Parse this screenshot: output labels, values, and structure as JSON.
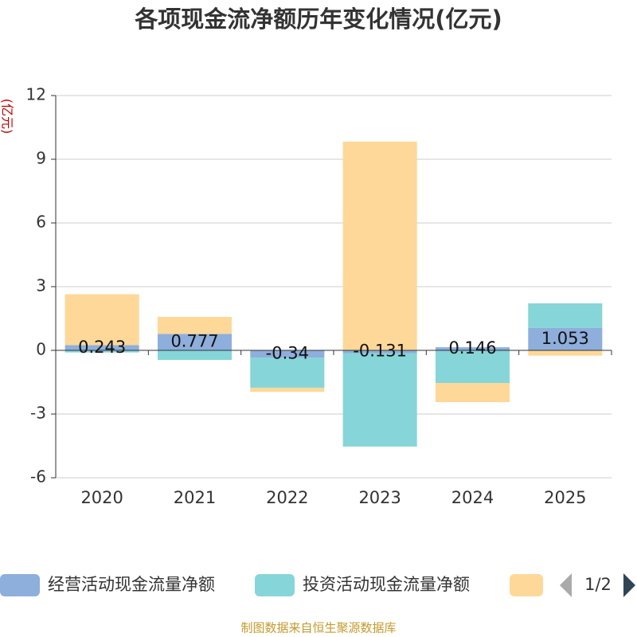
{
  "chart_data": {
    "type": "bar",
    "title": "各项现金流净额历年变化情况(亿元)",
    "y_label": "(亿元)",
    "categories": [
      "2020",
      "2021",
      "2022",
      "2023",
      "2024",
      "2025"
    ],
    "series": [
      {
        "name": "经营活动现金流量净额",
        "color": "#8eaedc",
        "values": [
          0.243,
          0.777,
          -0.34,
          -0.131,
          0.146,
          1.053
        ]
      },
      {
        "name": "投资活动现金流量净额",
        "color": "#86d5d8",
        "values": [
          -0.1,
          -0.45,
          -1.42,
          -4.4,
          -1.54,
          1.16
        ]
      },
      {
        "color": "#fdd898",
        "values": [
          2.4,
          0.8,
          -0.19,
          9.83,
          -0.9,
          -0.25
        ]
      }
    ],
    "stacked": true,
    "ylim": [
      -6,
      12
    ],
    "yticks": [
      -6,
      -3,
      0,
      3,
      6,
      9,
      12
    ],
    "grid": true,
    "legend_page": "1/2",
    "source": "制图数据来自恒生聚源数据库"
  }
}
